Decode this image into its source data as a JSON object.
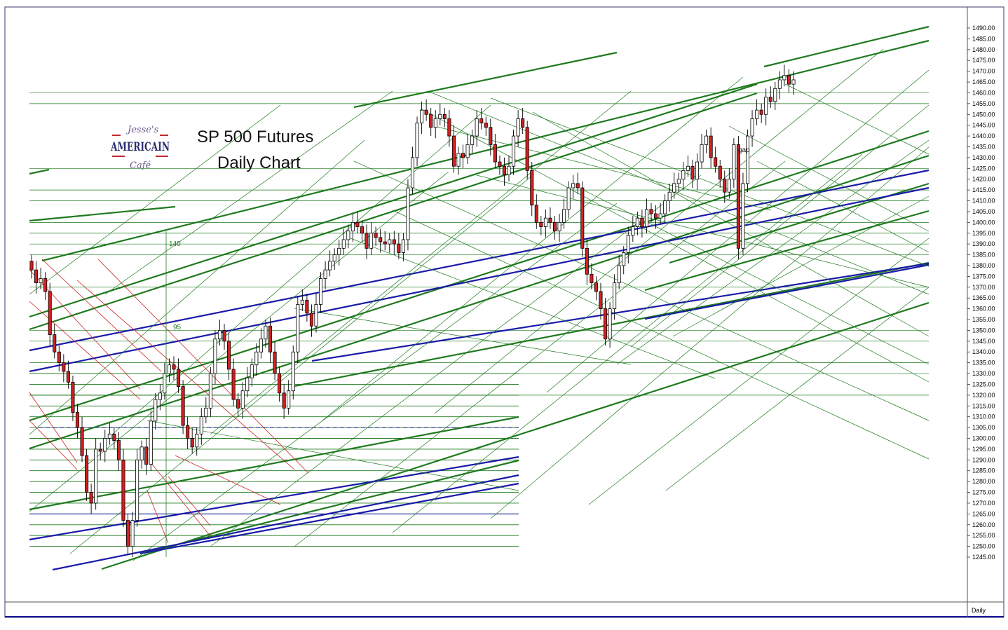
{
  "chart_data": {
    "type": "candlestick",
    "title_line1": "SP 500 Futures",
    "title_line2": "Daily Chart",
    "timeframe_label": "Daily",
    "yaxis": {
      "min": 1245,
      "max": 1490,
      "step": 5,
      "tick_labels": [
        "1490.00",
        "1485.00",
        "1480.00",
        "1475.00",
        "1470.00",
        "1465.00",
        "1460.00",
        "1455.00",
        "1450.00",
        "1445.00",
        "1440.00",
        "1435.00",
        "1430.00",
        "1425.00",
        "1420.00",
        "1415.00",
        "1410.00",
        "1405.00",
        "1400.00",
        "1395.00",
        "1390.00",
        "1385.00",
        "1380.00",
        "1375.00",
        "1370.00",
        "1365.00",
        "1360.00",
        "1355.00",
        "1350.00",
        "1345.00",
        "1340.00",
        "1335.00",
        "1330.00",
        "1325.00",
        "1320.00",
        "1315.00",
        "1310.00",
        "1305.00",
        "1300.00",
        "1295.00",
        "1290.00",
        "1285.00",
        "1280.00",
        "1275.00",
        "1270.00",
        "1265.00",
        "1260.00",
        "1255.00",
        "1250.00",
        "1245.00"
      ]
    },
    "annotations": [
      {
        "text": "140",
        "kind": "time-count"
      },
      {
        "text": "95",
        "kind": "time-count"
      },
      {
        "text": "gap",
        "kind": "note"
      }
    ],
    "candles_close": [
      1378,
      1372,
      1374,
      1368,
      1348,
      1340,
      1335,
      1331,
      1326,
      1312,
      1305,
      1292,
      1275,
      1270,
      1295,
      1294,
      1300,
      1302,
      1299,
      1290,
      1262,
      1250,
      1262,
      1290,
      1296,
      1288,
      1308,
      1318,
      1321,
      1330,
      1334,
      1332,
      1324,
      1306,
      1300,
      1296,
      1302,
      1310,
      1314,
      1330,
      1346,
      1350,
      1345,
      1332,
      1318,
      1314,
      1322,
      1328,
      1334,
      1340,
      1346,
      1352,
      1340,
      1330,
      1321,
      1314,
      1322,
      1340,
      1362,
      1364,
      1358,
      1352,
      1362,
      1374,
      1378,
      1382,
      1385,
      1388,
      1392,
      1396,
      1400,
      1398,
      1395,
      1388,
      1395,
      1393,
      1391,
      1390,
      1392,
      1390,
      1386,
      1392,
      1416,
      1430,
      1446,
      1452,
      1450,
      1444,
      1448,
      1450,
      1448,
      1440,
      1426,
      1432,
      1430,
      1436,
      1440,
      1448,
      1446,
      1444,
      1436,
      1428,
      1426,
      1422,
      1426,
      1440,
      1448,
      1444,
      1424,
      1408,
      1400,
      1398,
      1402,
      1400,
      1396,
      1400,
      1406,
      1416,
      1418,
      1416,
      1388,
      1376,
      1372,
      1368,
      1360,
      1346,
      1360,
      1372,
      1380,
      1386,
      1394,
      1398,
      1402,
      1398,
      1406,
      1404,
      1402,
      1404,
      1410,
      1414,
      1418,
      1420,
      1424,
      1426,
      1420,
      1428,
      1436,
      1440,
      1430,
      1426,
      1420,
      1414,
      1420,
      1436,
      1388,
      1418,
      1440,
      1448,
      1452,
      1450,
      1458,
      1456,
      1462,
      1466,
      1468,
      1464,
      1466
    ]
  },
  "colors": {
    "green_line": "#1f7a1f",
    "blue_line": "#1a1aa8",
    "red_line": "#cc2222",
    "down_candle": "#d42020",
    "up_candle": "#ffffff",
    "frame": "#1a1a6e"
  },
  "logo": {
    "script_top": "Jesse's",
    "brand": "AMERICAIN",
    "script_bottom": "Café"
  }
}
